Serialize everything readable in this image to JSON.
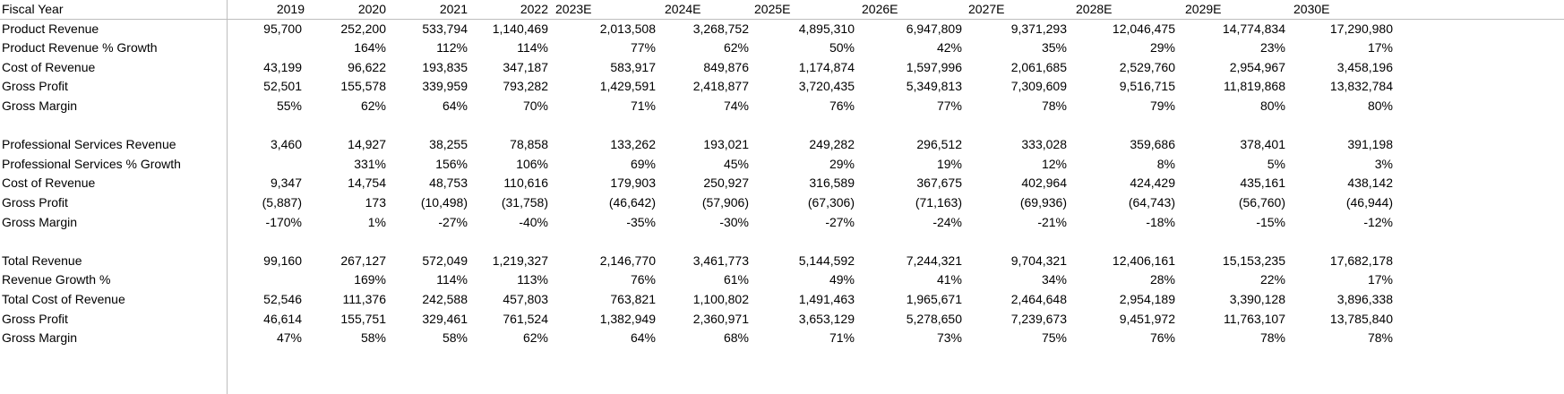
{
  "header": {
    "label": "Fiscal Year",
    "years": [
      "2019",
      "2020",
      "2021",
      "2022",
      "2023E",
      "2024E",
      "2025E",
      "2026E",
      "2027E",
      "2028E",
      "2029E",
      "2030E"
    ]
  },
  "rows": [
    {
      "label": "Product Revenue",
      "values": [
        "95,700",
        "252,200",
        "533,794",
        "1,140,469",
        "2,013,508",
        "3,268,752",
        "4,895,310",
        "6,947,809",
        "9,371,293",
        "12,046,475",
        "14,774,834",
        "17,290,980"
      ]
    },
    {
      "label": "Product Revenue % Growth",
      "values": [
        "",
        "164%",
        "112%",
        "114%",
        "77%",
        "62%",
        "50%",
        "42%",
        "35%",
        "29%",
        "23%",
        "17%"
      ]
    },
    {
      "label": "Cost of Revenue",
      "values": [
        "43,199",
        "96,622",
        "193,835",
        "347,187",
        "583,917",
        "849,876",
        "1,174,874",
        "1,597,996",
        "2,061,685",
        "2,529,760",
        "2,954,967",
        "3,458,196"
      ]
    },
    {
      "label": "Gross Profit",
      "values": [
        "52,501",
        "155,578",
        "339,959",
        "793,282",
        "1,429,591",
        "2,418,877",
        "3,720,435",
        "5,349,813",
        "7,309,609",
        "9,516,715",
        "11,819,868",
        "13,832,784"
      ]
    },
    {
      "label": "Gross Margin",
      "values": [
        "55%",
        "62%",
        "64%",
        "70%",
        "71%",
        "74%",
        "76%",
        "77%",
        "78%",
        "79%",
        "80%",
        "80%"
      ]
    },
    {
      "label": "",
      "values": []
    },
    {
      "label": "Professional Services Revenue",
      "values": [
        "3,460",
        "14,927",
        "38,255",
        "78,858",
        "133,262",
        "193,021",
        "249,282",
        "296,512",
        "333,028",
        "359,686",
        "378,401",
        "391,198"
      ]
    },
    {
      "label": "Professional Services % Growth",
      "values": [
        "",
        "331%",
        "156%",
        "106%",
        "69%",
        "45%",
        "29%",
        "19%",
        "12%",
        "8%",
        "5%",
        "3%"
      ]
    },
    {
      "label": "Cost of Revenue",
      "values": [
        "9,347",
        "14,754",
        "48,753",
        "110,616",
        "179,903",
        "250,927",
        "316,589",
        "367,675",
        "402,964",
        "424,429",
        "435,161",
        "438,142"
      ]
    },
    {
      "label": "Gross Profit",
      "values": [
        "(5,887)",
        "173",
        "(10,498)",
        "(31,758)",
        "(46,642)",
        "(57,906)",
        "(67,306)",
        "(71,163)",
        "(69,936)",
        "(64,743)",
        "(56,760)",
        "(46,944)"
      ]
    },
    {
      "label": "Gross Margin",
      "values": [
        "-170%",
        "1%",
        "-27%",
        "-40%",
        "-35%",
        "-30%",
        "-27%",
        "-24%",
        "-21%",
        "-18%",
        "-15%",
        "-12%"
      ]
    },
    {
      "label": "",
      "values": []
    },
    {
      "label": "Total Revenue",
      "values": [
        "99,160",
        "267,127",
        "572,049",
        "1,219,327",
        "2,146,770",
        "3,461,773",
        "5,144,592",
        "7,244,321",
        "9,704,321",
        "12,406,161",
        "15,153,235",
        "17,682,178"
      ]
    },
    {
      "label": "Revenue Growth %",
      "values": [
        "",
        "169%",
        "114%",
        "113%",
        "76%",
        "61%",
        "49%",
        "41%",
        "34%",
        "28%",
        "22%",
        "17%"
      ]
    },
    {
      "label": "Total Cost of Revenue",
      "values": [
        "52,546",
        "111,376",
        "242,588",
        "457,803",
        "763,821",
        "1,100,802",
        "1,491,463",
        "1,965,671",
        "2,464,648",
        "2,954,189",
        "3,390,128",
        "3,896,338"
      ]
    },
    {
      "label": "Gross Profit",
      "values": [
        "46,614",
        "155,751",
        "329,461",
        "761,524",
        "1,382,949",
        "2,360,971",
        "3,653,129",
        "5,278,650",
        "7,239,673",
        "9,451,972",
        "11,763,107",
        "13,785,840"
      ]
    },
    {
      "label": "Gross Margin",
      "values": [
        "47%",
        "58%",
        "58%",
        "62%",
        "64%",
        "68%",
        "71%",
        "73%",
        "75%",
        "76%",
        "78%",
        "78%"
      ]
    }
  ]
}
